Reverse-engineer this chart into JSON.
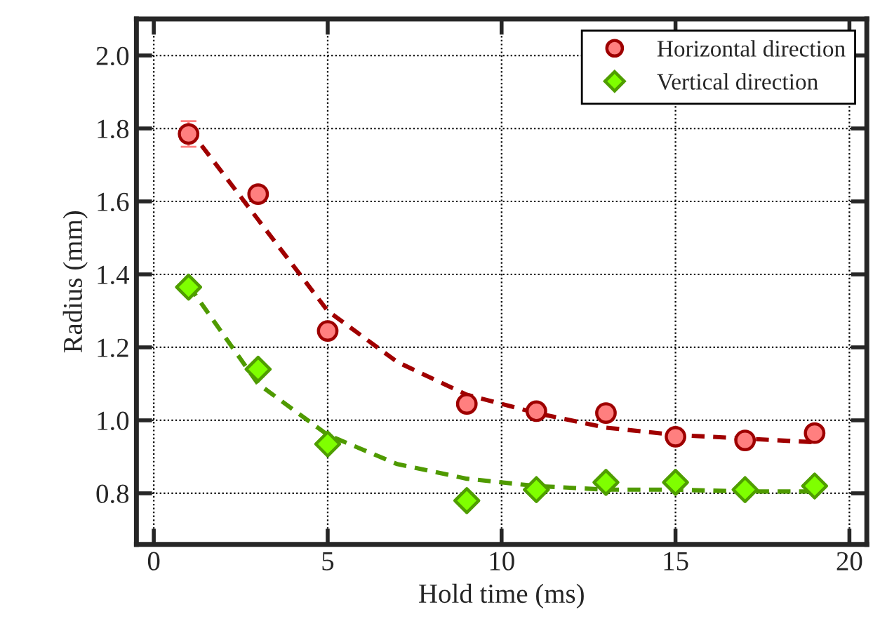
{
  "chart_data": {
    "type": "scatter",
    "xlabel": "Hold time (ms)",
    "ylabel": "Radius (mm)",
    "xlim": [
      -0.5,
      20.5
    ],
    "ylim": [
      0.66,
      2.1
    ],
    "xticks": [
      0,
      5,
      10,
      15,
      20
    ],
    "yticks": [
      {
        "value": 0.8,
        "label": "0.8"
      },
      {
        "value": 1.0,
        "label": "1.0"
      },
      {
        "value": 1.2,
        "label": "1.2"
      },
      {
        "value": 1.4,
        "label": "1.4"
      },
      {
        "value": 1.6,
        "label": "1.6"
      },
      {
        "value": 1.8,
        "label": "1.8"
      },
      {
        "value": 2.0,
        "label": "2.0"
      }
    ],
    "grid": true,
    "legend": "top right",
    "series": [
      {
        "type": "line",
        "color": "#a00000",
        "line_style": "dashed",
        "marker": "none",
        "x": [
          1,
          3,
          5,
          7,
          9,
          11,
          13,
          15,
          17,
          19
        ],
        "values": [
          1.8,
          1.55,
          1.3,
          1.16,
          1.07,
          1.02,
          0.98,
          0.96,
          0.95,
          0.94
        ]
      },
      {
        "type": "line",
        "color": "#4f9a00",
        "line_style": "dashed",
        "marker": "none",
        "x": [
          1,
          3,
          5,
          7,
          9,
          11,
          13,
          15,
          17,
          19
        ],
        "values": [
          1.37,
          1.1,
          0.96,
          0.88,
          0.84,
          0.82,
          0.81,
          0.81,
          0.805,
          0.805
        ]
      },
      {
        "name": "Horizontal direction",
        "marker": "circle",
        "color": "#ff7f7f",
        "x": [
          1,
          3,
          5,
          9,
          11,
          13,
          15,
          17,
          19
        ],
        "values": [
          1.785,
          1.62,
          1.245,
          1.045,
          1.025,
          1.02,
          0.955,
          0.945,
          0.965
        ],
        "errors": [
          0.035,
          null,
          null,
          null,
          null,
          null,
          null,
          null,
          null
        ]
      },
      {
        "name": "Vertical direction",
        "marker": "diamond",
        "color": "#7fff00",
        "x": [
          1,
          3,
          5,
          9,
          11,
          13,
          15,
          17,
          19
        ],
        "values": [
          1.365,
          1.14,
          0.935,
          0.78,
          0.81,
          0.83,
          0.83,
          0.81,
          0.82
        ]
      }
    ]
  }
}
